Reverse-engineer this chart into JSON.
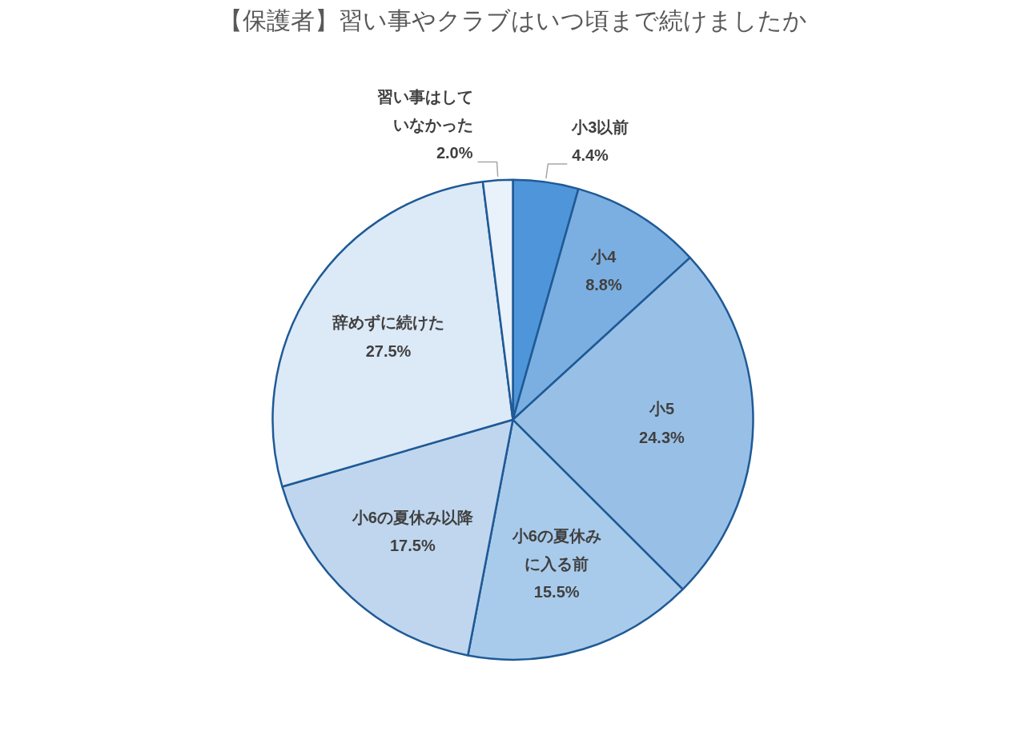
{
  "chart_data": {
    "type": "pie",
    "title": "【保護者】習い事やクラブはいつ頃まで続けましたか",
    "categories": [
      "小3以前",
      "小4",
      "小5",
      "小6の夏休みに入る前",
      "小6の夏休み以降",
      "辞めずに続けた",
      "習い事はしていなかった"
    ],
    "values": [
      4.4,
      8.8,
      24.3,
      15.5,
      17.5,
      27.5,
      2.0
    ],
    "value_labels": [
      "4.4%",
      "8.8%",
      "24.3%",
      "15.5%",
      "17.5%",
      "27.5%",
      "2.0%"
    ],
    "colors": [
      "#4f95d9",
      "#7cafe1",
      "#98c0e7",
      "#a9cbeb",
      "#bfd6ee",
      "#dce9f7",
      "#e9f1fa"
    ]
  }
}
